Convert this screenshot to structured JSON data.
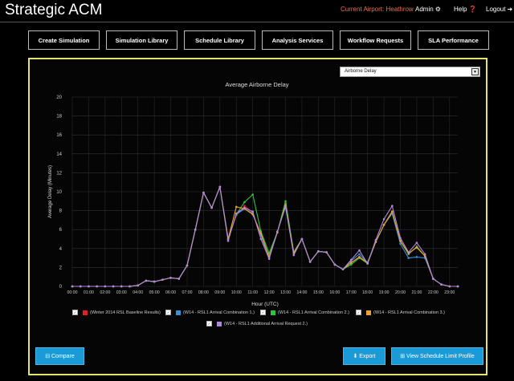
{
  "app": {
    "title": "Strategic ACM",
    "current_airport": "Current Airport: Heathrow",
    "admin_label": "Admin",
    "admin_icon": "gear-icon",
    "help_label": "Help",
    "help_icon": "question-circle-icon",
    "logout_label": "Logout",
    "logout_icon": "sign-out-icon"
  },
  "nav": [
    {
      "label": "Create Simulation"
    },
    {
      "label": "Simulation Library"
    },
    {
      "label": "Schedule Library"
    },
    {
      "label": "Analysis Services"
    },
    {
      "label": "Workflow Requests"
    },
    {
      "label": "SLA Performance"
    }
  ],
  "metric_select": {
    "value": "Airborne Delay"
  },
  "buttons": {
    "compare": "⊟ Compare",
    "export": "⬇ Export",
    "view_limit": "⊞ View Schedule Limit Profile"
  },
  "colors": {
    "accent_border": "#e6e36a",
    "button_blue": "#1a9bd7",
    "airport_text": "#e8734a"
  },
  "chart_data": {
    "type": "line",
    "title": "Average Airborne Delay",
    "xlabel": "Hour (UTC)",
    "ylabel": "Average Delay (Minutes)",
    "ylim": [
      0,
      20
    ],
    "yticks": [
      0,
      2,
      4,
      6,
      8,
      10,
      12,
      14,
      16,
      18,
      20
    ],
    "xtick_labels": [
      "00:00",
      "01:00",
      "02:00",
      "03:00",
      "04:00",
      "05:00",
      "06:00",
      "07:00",
      "08:00",
      "09:00",
      "10:00",
      "11:00",
      "12:00",
      "13:00",
      "14:00",
      "15:00",
      "16:00",
      "17:00",
      "18:00",
      "19:00",
      "20:00",
      "21:00",
      "22:00",
      "23:00"
    ],
    "x": [
      0,
      0.5,
      1,
      1.5,
      2,
      2.5,
      3,
      3.5,
      4,
      4.5,
      5,
      5.5,
      6,
      6.5,
      7,
      7.5,
      8,
      8.5,
      9,
      9.5,
      10,
      10.5,
      11,
      11.5,
      12,
      12.5,
      13,
      13.5,
      14,
      14.5,
      15,
      15.5,
      16,
      16.5,
      17,
      17.5,
      18,
      18.5,
      19,
      19.5,
      20,
      20.5,
      21,
      21.5,
      22,
      22.5,
      23,
      23.5
    ],
    "grid": true,
    "legend_position": "bottom",
    "series": [
      {
        "name": "(Winter 2014 RSL Baseline Results)",
        "color": "#e02020",
        "values": [
          0,
          0,
          0,
          0,
          0,
          0,
          0,
          0,
          0.1,
          0.6,
          0.5,
          0.7,
          0.9,
          0.8,
          2.2,
          6,
          9.9,
          8.3,
          10.5,
          5,
          7.5,
          8.5,
          7.8,
          5,
          3.2,
          5.7,
          8.7,
          3.6,
          5,
          2.6,
          3.7,
          3.6,
          2.3,
          1.8,
          2.5,
          3.1,
          2.5,
          4.7,
          6.5,
          7.9,
          4.8,
          3.4,
          4.2,
          3.2,
          0.8,
          0.2,
          0,
          0
        ]
      },
      {
        "name": "(W14 - RSL1 Arrival Combination 1.)",
        "color": "#3a8fd8",
        "values": [
          0,
          0,
          0,
          0,
          0,
          0,
          0,
          0,
          0.1,
          0.6,
          0.5,
          0.7,
          0.9,
          0.8,
          2.2,
          6,
          9.9,
          8.3,
          10.5,
          5,
          7.6,
          8.2,
          7.7,
          5.4,
          3,
          5.7,
          8.8,
          3.6,
          5,
          2.6,
          3.7,
          3.6,
          2.3,
          1.8,
          2.7,
          3.4,
          2.5,
          4.7,
          6.5,
          7.7,
          4.5,
          3,
          3.1,
          3,
          0.8,
          0.2,
          0,
          0
        ]
      },
      {
        "name": "(W14 - RSL1 Arrival Combination 2.)",
        "color": "#2ec43c",
        "values": [
          0,
          0,
          0,
          0,
          0,
          0,
          0,
          0,
          0.1,
          0.6,
          0.5,
          0.7,
          0.9,
          0.8,
          2.2,
          6,
          9.9,
          8.3,
          10.5,
          5,
          7.6,
          8.9,
          9.7,
          5.8,
          3.5,
          5.7,
          9.0,
          3.6,
          5,
          2.6,
          3.7,
          3.6,
          2.3,
          1.8,
          2.3,
          3.0,
          2.4,
          4.7,
          6.5,
          7.9,
          4.8,
          3.4,
          4.2,
          3.2,
          0.8,
          0.2,
          0,
          0
        ]
      },
      {
        "name": "(W14 - RSL1 Arrival Combination 3.)",
        "color": "#f0a030",
        "values": [
          0,
          0,
          0,
          0,
          0,
          0,
          0,
          0,
          0.1,
          0.6,
          0.5,
          0.7,
          0.9,
          0.8,
          2.2,
          6,
          9.9,
          8.3,
          10.5,
          5,
          8.4,
          8.2,
          7.6,
          5.6,
          3.1,
          5.7,
          8.6,
          3.5,
          5,
          2.6,
          3.7,
          3.6,
          2.3,
          1.8,
          2.5,
          3.1,
          2.5,
          4.7,
          6.5,
          7.9,
          4.8,
          3.5,
          4.1,
          3.2,
          0.8,
          0.2,
          0,
          0
        ]
      },
      {
        "name": "(W14 - RSL1 Additional Arrival Request 2.)",
        "color": "#b087e0",
        "values": [
          0,
          0,
          0,
          0,
          0,
          0,
          0,
          0,
          0.1,
          0.6,
          0.5,
          0.7,
          0.9,
          0.8,
          2.2,
          6,
          9.9,
          8.3,
          10.5,
          4.8,
          7.7,
          8.3,
          7.9,
          5,
          2.9,
          5.8,
          8.4,
          3.3,
          5,
          2.6,
          3.7,
          3.6,
          2.3,
          1.8,
          2.8,
          3.8,
          2.4,
          4.9,
          7.1,
          8.5,
          5.1,
          3.6,
          4.6,
          3.4,
          0.8,
          0.2,
          0,
          0
        ]
      }
    ]
  }
}
